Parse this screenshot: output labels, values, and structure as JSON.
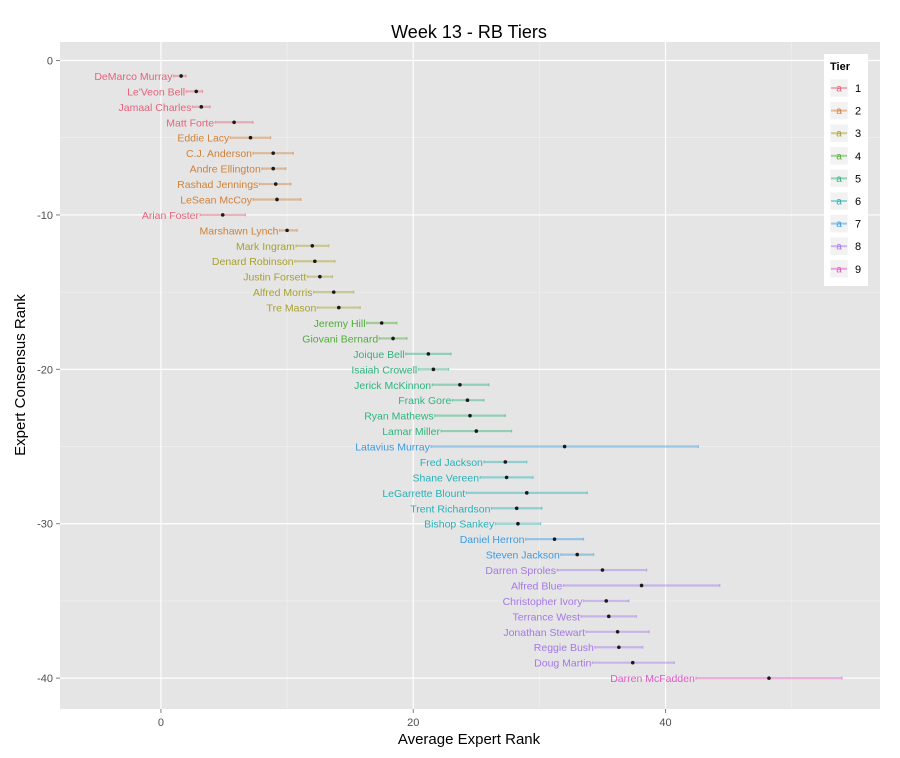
{
  "chart_data": {
    "type": "scatter",
    "title": "Week 13 - RB Tiers",
    "xlabel": "Average Expert Rank",
    "ylabel": "Expert Consensus Rank",
    "xlim": [
      -8,
      57
    ],
    "ylim": [
      -42,
      1.2
    ],
    "x_ticks": [
      0,
      20,
      40
    ],
    "y_ticks": [
      0,
      -10,
      -20,
      -30,
      -40
    ],
    "grid": true,
    "legend": {
      "title": "Tier",
      "position": "right",
      "entries": [
        "1",
        "2",
        "3",
        "4",
        "5",
        "6",
        "7",
        "8",
        "9"
      ]
    },
    "tier_colors": {
      "1": "#E5637A",
      "2": "#D0813A",
      "3": "#A8A02E",
      "4": "#4FAE37",
      "5": "#2FB47F",
      "6": "#27B1B6",
      "7": "#3A9BE3",
      "8": "#A477E8",
      "9": "#E058C3"
    },
    "points": [
      {
        "name": "DeMarco Murray",
        "rank": -1,
        "x": 1.6,
        "lo": 1.0,
        "hi": 2.0,
        "tier": 1
      },
      {
        "name": "Le'Veon Bell",
        "rank": -2,
        "x": 2.8,
        "lo": 2.0,
        "hi": 3.3,
        "tier": 1
      },
      {
        "name": "Jamaal Charles",
        "rank": -3,
        "x": 3.2,
        "lo": 2.5,
        "hi": 3.9,
        "tier": 1
      },
      {
        "name": "Matt Forte",
        "rank": -4,
        "x": 5.8,
        "lo": 4.3,
        "hi": 7.3,
        "tier": 1
      },
      {
        "name": "Eddie Lacy",
        "rank": -5,
        "x": 7.1,
        "lo": 5.5,
        "hi": 8.7,
        "tier": 2
      },
      {
        "name": "C.J. Anderson",
        "rank": -6,
        "x": 8.9,
        "lo": 7.3,
        "hi": 10.5,
        "tier": 2
      },
      {
        "name": "Andre Ellington",
        "rank": -7,
        "x": 8.9,
        "lo": 8.0,
        "hi": 9.9,
        "tier": 2
      },
      {
        "name": "Rashad Jennings",
        "rank": -8,
        "x": 9.1,
        "lo": 7.8,
        "hi": 10.3,
        "tier": 2
      },
      {
        "name": "LeSean McCoy",
        "rank": -9,
        "x": 9.2,
        "lo": 7.3,
        "hi": 11.1,
        "tier": 2
      },
      {
        "name": "Arian Foster",
        "rank": -10,
        "x": 4.9,
        "lo": 3.1,
        "hi": 6.7,
        "tier": 1
      },
      {
        "name": "Marshawn Lynch",
        "rank": -11,
        "x": 10.0,
        "lo": 9.4,
        "hi": 10.8,
        "tier": 2
      },
      {
        "name": "Mark Ingram",
        "rank": -12,
        "x": 12.0,
        "lo": 10.7,
        "hi": 13.3,
        "tier": 3
      },
      {
        "name": "Denard Robinson",
        "rank": -13,
        "x": 12.2,
        "lo": 10.6,
        "hi": 13.8,
        "tier": 3
      },
      {
        "name": "Justin Forsett",
        "rank": -14,
        "x": 12.6,
        "lo": 11.6,
        "hi": 13.6,
        "tier": 3
      },
      {
        "name": "Alfred Morris",
        "rank": -15,
        "x": 13.7,
        "lo": 12.1,
        "hi": 15.3,
        "tier": 3
      },
      {
        "name": "Tre Mason",
        "rank": -16,
        "x": 14.1,
        "lo": 12.4,
        "hi": 15.8,
        "tier": 3
      },
      {
        "name": "Jeremy Hill",
        "rank": -17,
        "x": 17.5,
        "lo": 16.3,
        "hi": 18.7,
        "tier": 4
      },
      {
        "name": "Giovani Bernard",
        "rank": -18,
        "x": 18.4,
        "lo": 17.3,
        "hi": 19.5,
        "tier": 4
      },
      {
        "name": "Joique Bell",
        "rank": -19,
        "x": 21.2,
        "lo": 19.4,
        "hi": 23.0,
        "tier": 5
      },
      {
        "name": "Isaiah Crowell",
        "rank": -20,
        "x": 21.6,
        "lo": 20.4,
        "hi": 22.8,
        "tier": 5
      },
      {
        "name": "Jerick McKinnon",
        "rank": -21,
        "x": 23.7,
        "lo": 21.5,
        "hi": 26.0,
        "tier": 5
      },
      {
        "name": "Frank Gore",
        "rank": -22,
        "x": 24.3,
        "lo": 23.1,
        "hi": 25.6,
        "tier": 5
      },
      {
        "name": "Ryan Mathews",
        "rank": -23,
        "x": 24.5,
        "lo": 21.7,
        "hi": 27.3,
        "tier": 5
      },
      {
        "name": "Lamar Miller",
        "rank": -24,
        "x": 25.0,
        "lo": 22.2,
        "hi": 27.8,
        "tier": 5
      },
      {
        "name": "Latavius Murray",
        "rank": -25,
        "x": 32.0,
        "lo": 21.4,
        "hi": 42.6,
        "tier": 7
      },
      {
        "name": "Fred Jackson",
        "rank": -26,
        "x": 27.3,
        "lo": 25.6,
        "hi": 29.0,
        "tier": 6
      },
      {
        "name": "Shane Vereen",
        "rank": -27,
        "x": 27.4,
        "lo": 25.3,
        "hi": 29.5,
        "tier": 6
      },
      {
        "name": "LeGarrette Blount",
        "rank": -28,
        "x": 29.0,
        "lo": 24.2,
        "hi": 33.8,
        "tier": 6
      },
      {
        "name": "Trent Richardson",
        "rank": -29,
        "x": 28.2,
        "lo": 26.2,
        "hi": 30.2,
        "tier": 6
      },
      {
        "name": "Bishop Sankey",
        "rank": -30,
        "x": 28.3,
        "lo": 26.5,
        "hi": 30.1,
        "tier": 6
      },
      {
        "name": "Daniel Herron",
        "rank": -31,
        "x": 31.2,
        "lo": 28.9,
        "hi": 33.5,
        "tier": 7
      },
      {
        "name": "Steven Jackson",
        "rank": -32,
        "x": 33.0,
        "lo": 31.7,
        "hi": 34.3,
        "tier": 7
      },
      {
        "name": "Darren Sproles",
        "rank": -33,
        "x": 35.0,
        "lo": 31.4,
        "hi": 38.5,
        "tier": 8
      },
      {
        "name": "Alfred Blue",
        "rank": -34,
        "x": 38.1,
        "lo": 31.9,
        "hi": 44.3,
        "tier": 8
      },
      {
        "name": "Christopher Ivory",
        "rank": -35,
        "x": 35.3,
        "lo": 33.5,
        "hi": 37.1,
        "tier": 8
      },
      {
        "name": "Terrance West",
        "rank": -36,
        "x": 35.5,
        "lo": 33.3,
        "hi": 37.7,
        "tier": 8
      },
      {
        "name": "Jonathan Stewart",
        "rank": -37,
        "x": 36.2,
        "lo": 33.7,
        "hi": 38.7,
        "tier": 8
      },
      {
        "name": "Reggie Bush",
        "rank": -38,
        "x": 36.3,
        "lo": 34.4,
        "hi": 38.2,
        "tier": 8
      },
      {
        "name": "Doug Martin",
        "rank": -39,
        "x": 37.4,
        "lo": 34.2,
        "hi": 40.7,
        "tier": 8
      },
      {
        "name": "Darren McFadden",
        "rank": -40,
        "x": 48.2,
        "lo": 42.4,
        "hi": 54.0,
        "tier": 9
      }
    ]
  }
}
